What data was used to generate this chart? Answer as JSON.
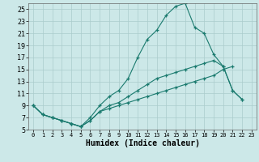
{
  "title": "",
  "xlabel": "Humidex (Indice chaleur)",
  "background_color": "#cce8e8",
  "grid_color": "#aacccc",
  "line_color": "#1a7a6e",
  "xlim": [
    -0.5,
    23.5
  ],
  "ylim": [
    5,
    26
  ],
  "xticks": [
    0,
    1,
    2,
    3,
    4,
    5,
    6,
    7,
    8,
    9,
    10,
    11,
    12,
    13,
    14,
    15,
    16,
    17,
    18,
    19,
    20,
    21,
    22,
    23
  ],
  "yticks": [
    5,
    7,
    9,
    11,
    13,
    15,
    17,
    19,
    21,
    23,
    25
  ],
  "line2_x": [
    0,
    1,
    2,
    3,
    4,
    5,
    6,
    7,
    8,
    9,
    10,
    11,
    12,
    13,
    14,
    15,
    16,
    17,
    18,
    19,
    20,
    21,
    22
  ],
  "line2_y": [
    9,
    7.5,
    7,
    6.5,
    6.0,
    5.5,
    7.0,
    9.0,
    10.5,
    11.5,
    13.5,
    17.0,
    20.0,
    21.5,
    24.0,
    25.5,
    26.0,
    22.0,
    21.0,
    17.5,
    15.5,
    11.5,
    10
  ],
  "line3_x": [
    0,
    1,
    2,
    3,
    4,
    5,
    6,
    7,
    8,
    9,
    10,
    11,
    12,
    13,
    14,
    15,
    16,
    17,
    18,
    19,
    20,
    21,
    22
  ],
  "line3_y": [
    9,
    7.5,
    7,
    6.5,
    6.0,
    5.5,
    6.5,
    8.0,
    9.0,
    9.5,
    10.5,
    11.5,
    12.5,
    13.5,
    14.0,
    14.5,
    15.0,
    15.5,
    16.0,
    16.5,
    15.5,
    11.5,
    10
  ],
  "line1_x": [
    0,
    1,
    2,
    3,
    4,
    5,
    6,
    7,
    8,
    9,
    10,
    11,
    12,
    13,
    14,
    15,
    16,
    17,
    18,
    19,
    20,
    21
  ],
  "line1_y": [
    9,
    7.5,
    7,
    6.5,
    6,
    5.5,
    6.5,
    8,
    8.5,
    9,
    9.5,
    10,
    10.5,
    11,
    11.5,
    12,
    12.5,
    13,
    13.5,
    14,
    15,
    15.5
  ]
}
